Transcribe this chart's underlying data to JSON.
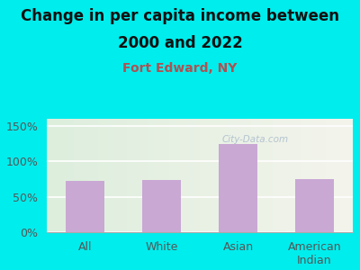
{
  "title_line1": "Change in per capita income between",
  "title_line2": "2000 and 2022",
  "subtitle": "Fort Edward, NY",
  "categories": [
    "All",
    "White",
    "Asian",
    "American\nIndian"
  ],
  "values": [
    72,
    74,
    125,
    75
  ],
  "bar_color": "#c9a8d4",
  "background_outer": "#00eded",
  "background_inner_left": "#ddeedd",
  "background_inner_right": "#f4f4ec",
  "title_fontsize": 12,
  "subtitle_fontsize": 10,
  "title_color": "#111111",
  "subtitle_color": "#b05050",
  "tick_label_fontsize": 9,
  "ylabel_ticks": [
    0,
    50,
    100,
    150
  ],
  "ylabel_labels": [
    "0%",
    "50%",
    "100%",
    "150%"
  ],
  "ylim": [
    0,
    160
  ],
  "watermark": "City-Data.com",
  "watermark_color": "#aabbcc",
  "bar_width": 0.5
}
